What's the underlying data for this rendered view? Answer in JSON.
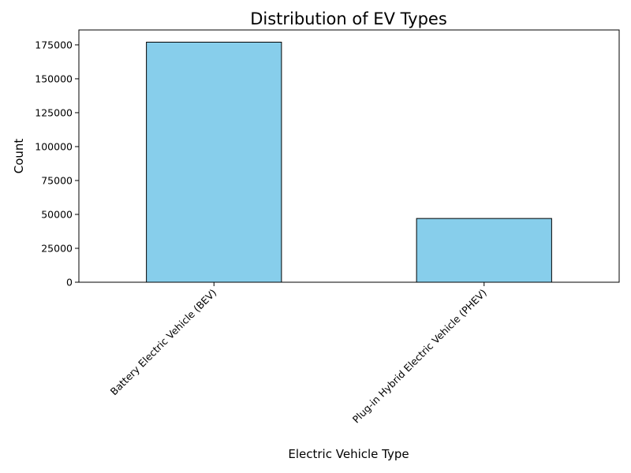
{
  "chart_data": {
    "type": "bar",
    "title": "Distribution of EV Types",
    "xlabel": "Electric Vehicle Type",
    "ylabel": "Count",
    "categories": [
      "Battery Electric Vehicle (BEV)",
      "Plug-in Hybrid Electric Vehicle (PHEV)"
    ],
    "values": [
      177000,
      47000
    ],
    "ylim": [
      0,
      186000
    ],
    "yticks": [
      0,
      25000,
      50000,
      75000,
      100000,
      125000,
      150000,
      175000
    ],
    "bar_color": "#87CEEB",
    "edge_color": "#000000",
    "grid": false,
    "legend": "none"
  }
}
